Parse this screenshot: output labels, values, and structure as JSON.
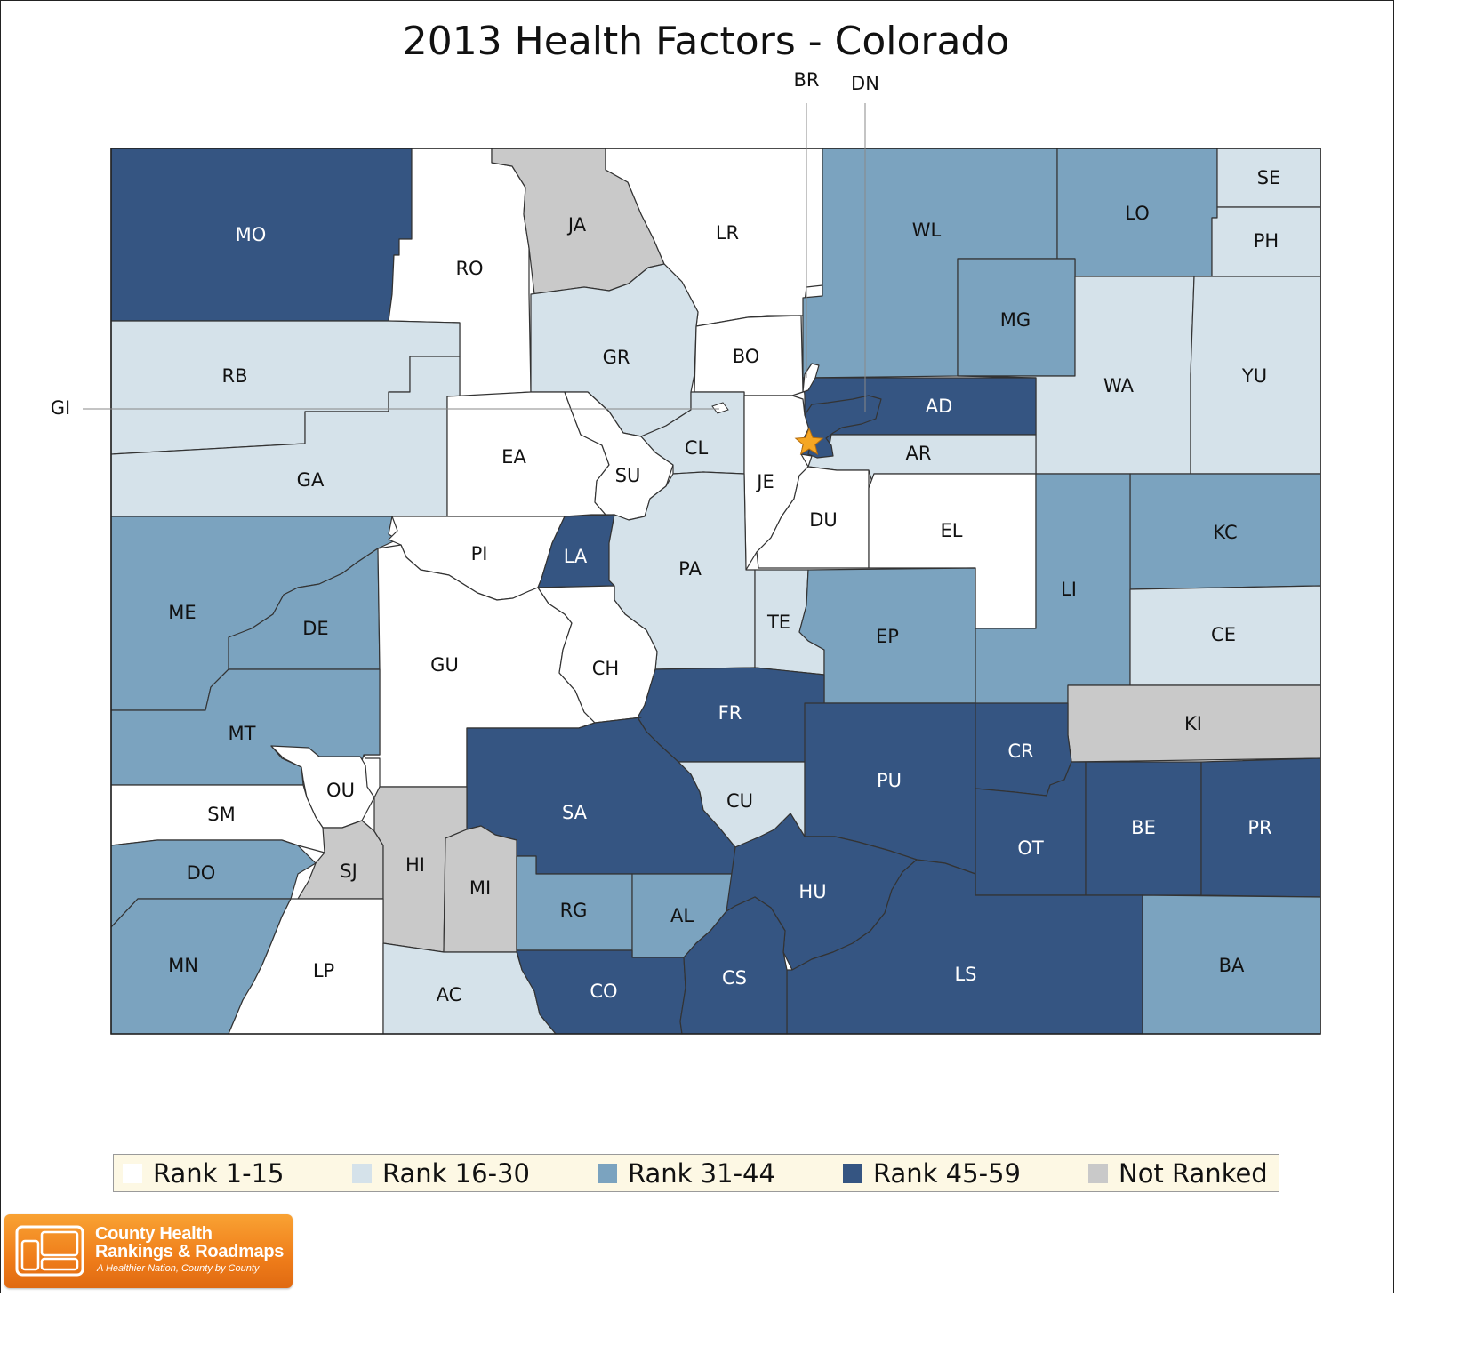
{
  "title": "2013 Health Factors - Colorado",
  "colors": {
    "rank_1_15": "#ffffff",
    "rank_16_30": "#d5e2ea",
    "rank_31_44": "#7ba3bf",
    "rank_45_59": "#355582",
    "not_ranked": "#c9c9c9",
    "state_border": "#222222",
    "county_border": "#333333",
    "star": "#f5a623"
  },
  "legend": [
    {
      "label": "Rank 1-15",
      "class": "rank_1_15"
    },
    {
      "label": "Rank 16-30",
      "class": "rank_16_30"
    },
    {
      "label": "Rank 31-44",
      "class": "rank_31_44"
    },
    {
      "label": "Rank 45-59",
      "class": "rank_45_59"
    },
    {
      "label": "Not Ranked",
      "class": "not_ranked"
    }
  ],
  "counties": [
    {
      "abbr": "MO",
      "class": "rank_45_59"
    },
    {
      "abbr": "RO",
      "class": "rank_1_15"
    },
    {
      "abbr": "JA",
      "class": "not_ranked"
    },
    {
      "abbr": "LR",
      "class": "rank_1_15"
    },
    {
      "abbr": "WL",
      "class": "rank_31_44"
    },
    {
      "abbr": "LO",
      "class": "rank_31_44"
    },
    {
      "abbr": "SE",
      "class": "rank_16_30"
    },
    {
      "abbr": "PH",
      "class": "rank_16_30"
    },
    {
      "abbr": "RB",
      "class": "rank_16_30"
    },
    {
      "abbr": "GR",
      "class": "rank_16_30"
    },
    {
      "abbr": "BO",
      "class": "rank_1_15"
    },
    {
      "abbr": "MG",
      "class": "rank_31_44"
    },
    {
      "abbr": "WA",
      "class": "rank_16_30"
    },
    {
      "abbr": "YU",
      "class": "rank_16_30"
    },
    {
      "abbr": "AD",
      "class": "rank_45_59"
    },
    {
      "abbr": "AR",
      "class": "rank_16_30"
    },
    {
      "abbr": "GA",
      "class": "rank_16_30"
    },
    {
      "abbr": "EA",
      "class": "rank_1_15"
    },
    {
      "abbr": "SU",
      "class": "rank_1_15"
    },
    {
      "abbr": "CL",
      "class": "rank_16_30"
    },
    {
      "abbr": "JE",
      "class": "rank_1_15"
    },
    {
      "abbr": "DU",
      "class": "rank_1_15"
    },
    {
      "abbr": "EL",
      "class": "rank_1_15"
    },
    {
      "abbr": "KC",
      "class": "rank_31_44"
    },
    {
      "abbr": "ME",
      "class": "rank_31_44"
    },
    {
      "abbr": "DE",
      "class": "rank_31_44"
    },
    {
      "abbr": "PI",
      "class": "rank_1_15"
    },
    {
      "abbr": "LA",
      "class": "rank_45_59"
    },
    {
      "abbr": "PA",
      "class": "rank_16_30"
    },
    {
      "abbr": "TE",
      "class": "rank_16_30"
    },
    {
      "abbr": "EP",
      "class": "rank_31_44"
    },
    {
      "abbr": "LI",
      "class": "rank_31_44"
    },
    {
      "abbr": "CE",
      "class": "rank_16_30"
    },
    {
      "abbr": "GU",
      "class": "rank_1_15"
    },
    {
      "abbr": "CH",
      "class": "rank_1_15"
    },
    {
      "abbr": "MT",
      "class": "rank_31_44"
    },
    {
      "abbr": "FR",
      "class": "rank_45_59"
    },
    {
      "abbr": "KI",
      "class": "not_ranked"
    },
    {
      "abbr": "OU",
      "class": "rank_1_15"
    },
    {
      "abbr": "SM",
      "class": "rank_1_15"
    },
    {
      "abbr": "SA",
      "class": "rank_45_59"
    },
    {
      "abbr": "CU",
      "class": "rank_16_30"
    },
    {
      "abbr": "PU",
      "class": "rank_45_59"
    },
    {
      "abbr": "CR",
      "class": "rank_45_59"
    },
    {
      "abbr": "OT",
      "class": "rank_45_59"
    },
    {
      "abbr": "BE",
      "class": "rank_45_59"
    },
    {
      "abbr": "PR",
      "class": "rank_45_59"
    },
    {
      "abbr": "DO",
      "class": "rank_31_44"
    },
    {
      "abbr": "SJ",
      "class": "not_ranked"
    },
    {
      "abbr": "HI",
      "class": "not_ranked"
    },
    {
      "abbr": "MI",
      "class": "not_ranked"
    },
    {
      "abbr": "RG",
      "class": "rank_31_44"
    },
    {
      "abbr": "AL",
      "class": "rank_31_44"
    },
    {
      "abbr": "HU",
      "class": "rank_45_59"
    },
    {
      "abbr": "MN",
      "class": "rank_31_44"
    },
    {
      "abbr": "LP",
      "class": "rank_1_15"
    },
    {
      "abbr": "AC",
      "class": "rank_16_30"
    },
    {
      "abbr": "CO",
      "class": "rank_45_59"
    },
    {
      "abbr": "CS",
      "class": "rank_45_59"
    },
    {
      "abbr": "LS",
      "class": "rank_45_59"
    },
    {
      "abbr": "BA",
      "class": "rank_31_44"
    },
    {
      "abbr": "DN",
      "class": "rank_45_59"
    },
    {
      "abbr": "BR",
      "class": "rank_1_15"
    },
    {
      "abbr": "GI",
      "class": "rank_1_15"
    }
  ],
  "callouts": [
    "BR",
    "DN",
    "GI"
  ],
  "logo": {
    "line1": "County Health",
    "line2": "Rankings & Roadmaps",
    "tagline": "A Healthier Nation, County by County"
  }
}
